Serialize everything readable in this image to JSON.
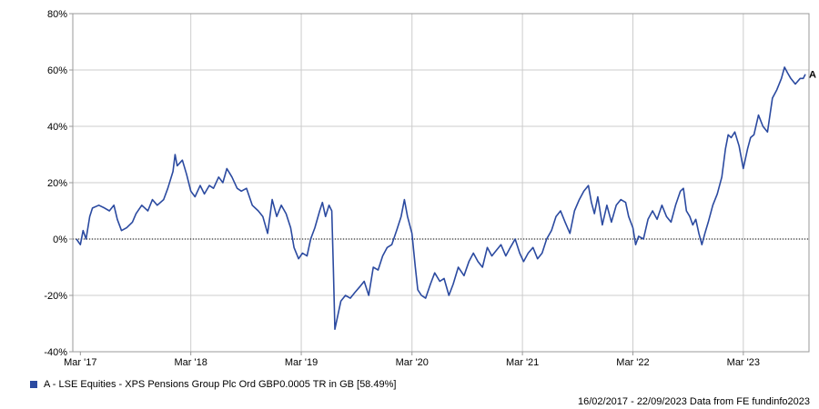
{
  "chart_data": {
    "type": "line",
    "x_tick_labels": [
      "Mar '17",
      "Mar '18",
      "Mar '19",
      "Mar '20",
      "Mar '21",
      "Mar '22",
      "Mar '23"
    ],
    "y_tick_labels": [
      "80%",
      "60%",
      "40%",
      "20%",
      "0%",
      "-20%",
      "-40%"
    ],
    "ylim": [
      -40,
      80
    ],
    "grid": true,
    "reference_line": 0,
    "series": [
      {
        "name": "A - LSE Equities - XPS Pensions Group Plc Ord GBP0.0005 TR in GB [58.49%]",
        "marker_label": "A",
        "color": "#2b4aa0",
        "points": [
          [
            "2017-02-16",
            0
          ],
          [
            "2017-03-01",
            -2
          ],
          [
            "2017-03-10",
            3
          ],
          [
            "2017-03-20",
            0
          ],
          [
            "2017-04-01",
            8
          ],
          [
            "2017-04-10",
            11
          ],
          [
            "2017-05-01",
            12
          ],
          [
            "2017-05-20",
            11
          ],
          [
            "2017-06-05",
            10
          ],
          [
            "2017-06-20",
            12
          ],
          [
            "2017-07-01",
            7
          ],
          [
            "2017-07-15",
            3
          ],
          [
            "2017-08-01",
            4
          ],
          [
            "2017-08-20",
            6
          ],
          [
            "2017-09-01",
            9
          ],
          [
            "2017-09-20",
            12
          ],
          [
            "2017-10-10",
            10
          ],
          [
            "2017-10-25",
            14
          ],
          [
            "2017-11-10",
            12
          ],
          [
            "2017-12-01",
            14
          ],
          [
            "2017-12-15",
            18
          ],
          [
            "2018-01-01",
            24
          ],
          [
            "2018-01-08",
            30
          ],
          [
            "2018-01-15",
            26
          ],
          [
            "2018-02-01",
            28
          ],
          [
            "2018-02-15",
            23
          ],
          [
            "2018-03-01",
            17
          ],
          [
            "2018-03-15",
            15
          ],
          [
            "2018-04-01",
            19
          ],
          [
            "2018-04-15",
            16
          ],
          [
            "2018-05-01",
            19
          ],
          [
            "2018-05-15",
            18
          ],
          [
            "2018-06-01",
            22
          ],
          [
            "2018-06-15",
            20
          ],
          [
            "2018-06-28",
            25
          ],
          [
            "2018-07-15",
            22
          ],
          [
            "2018-08-01",
            18
          ],
          [
            "2018-08-15",
            17
          ],
          [
            "2018-09-01",
            18
          ],
          [
            "2018-09-20",
            12
          ],
          [
            "2018-10-10",
            10
          ],
          [
            "2018-10-25",
            8
          ],
          [
            "2018-11-10",
            2
          ],
          [
            "2018-11-25",
            14
          ],
          [
            "2018-12-10",
            8
          ],
          [
            "2018-12-25",
            12
          ],
          [
            "2019-01-10",
            9
          ],
          [
            "2019-01-25",
            4
          ],
          [
            "2019-02-05",
            -3
          ],
          [
            "2019-02-20",
            -7
          ],
          [
            "2019-03-05",
            -5
          ],
          [
            "2019-03-20",
            -6
          ],
          [
            "2019-04-01",
            0
          ],
          [
            "2019-04-15",
            4
          ],
          [
            "2019-05-01",
            10
          ],
          [
            "2019-05-10",
            13
          ],
          [
            "2019-05-20",
            8
          ],
          [
            "2019-06-01",
            12
          ],
          [
            "2019-06-10",
            10
          ],
          [
            "2019-06-15",
            -10
          ],
          [
            "2019-06-20",
            -32
          ],
          [
            "2019-06-30",
            -27
          ],
          [
            "2019-07-10",
            -22
          ],
          [
            "2019-07-25",
            -20
          ],
          [
            "2019-08-10",
            -21
          ],
          [
            "2019-08-25",
            -19
          ],
          [
            "2019-09-10",
            -17
          ],
          [
            "2019-09-25",
            -15
          ],
          [
            "2019-10-10",
            -20
          ],
          [
            "2019-10-25",
            -10
          ],
          [
            "2019-11-10",
            -11
          ],
          [
            "2019-11-25",
            -6
          ],
          [
            "2019-12-10",
            -3
          ],
          [
            "2019-12-25",
            -2
          ],
          [
            "2020-01-10",
            3
          ],
          [
            "2020-01-25",
            8
          ],
          [
            "2020-02-05",
            14
          ],
          [
            "2020-02-15",
            8
          ],
          [
            "2020-03-01",
            2
          ],
          [
            "2020-03-12",
            -10
          ],
          [
            "2020-03-20",
            -18
          ],
          [
            "2020-04-01",
            -20
          ],
          [
            "2020-04-15",
            -21
          ],
          [
            "2020-05-01",
            -16
          ],
          [
            "2020-05-15",
            -12
          ],
          [
            "2020-06-01",
            -15
          ],
          [
            "2020-06-15",
            -14
          ],
          [
            "2020-07-01",
            -20
          ],
          [
            "2020-07-15",
            -16
          ],
          [
            "2020-08-01",
            -10
          ],
          [
            "2020-08-20",
            -13
          ],
          [
            "2020-09-05",
            -8
          ],
          [
            "2020-09-20",
            -5
          ],
          [
            "2020-10-05",
            -8
          ],
          [
            "2020-10-20",
            -10
          ],
          [
            "2020-11-05",
            -3
          ],
          [
            "2020-11-20",
            -6
          ],
          [
            "2020-12-05",
            -4
          ],
          [
            "2020-12-20",
            -2
          ],
          [
            "2021-01-05",
            -6
          ],
          [
            "2021-01-20",
            -3
          ],
          [
            "2021-02-05",
            0
          ],
          [
            "2021-02-20",
            -5
          ],
          [
            "2021-03-05",
            -8
          ],
          [
            "2021-03-20",
            -5
          ],
          [
            "2021-04-05",
            -3
          ],
          [
            "2021-04-20",
            -7
          ],
          [
            "2021-05-05",
            -5
          ],
          [
            "2021-05-20",
            0
          ],
          [
            "2021-06-05",
            3
          ],
          [
            "2021-06-20",
            8
          ],
          [
            "2021-07-05",
            10
          ],
          [
            "2021-07-20",
            6
          ],
          [
            "2021-08-05",
            2
          ],
          [
            "2021-08-20",
            10
          ],
          [
            "2021-09-05",
            14
          ],
          [
            "2021-09-20",
            17
          ],
          [
            "2021-10-05",
            19
          ],
          [
            "2021-10-15",
            13
          ],
          [
            "2021-10-25",
            9
          ],
          [
            "2021-11-05",
            15
          ],
          [
            "2021-11-20",
            5
          ],
          [
            "2021-12-05",
            12
          ],
          [
            "2021-12-20",
            6
          ],
          [
            "2022-01-05",
            12
          ],
          [
            "2022-01-20",
            14
          ],
          [
            "2022-02-05",
            13
          ],
          [
            "2022-02-15",
            8
          ],
          [
            "2022-03-01",
            4
          ],
          [
            "2022-03-10",
            -2
          ],
          [
            "2022-03-20",
            1
          ],
          [
            "2022-04-05",
            0
          ],
          [
            "2022-04-20",
            7
          ],
          [
            "2022-05-05",
            10
          ],
          [
            "2022-05-20",
            7
          ],
          [
            "2022-06-05",
            12
          ],
          [
            "2022-06-20",
            8
          ],
          [
            "2022-07-05",
            6
          ],
          [
            "2022-07-20",
            12
          ],
          [
            "2022-08-05",
            17
          ],
          [
            "2022-08-15",
            18
          ],
          [
            "2022-08-25",
            10
          ],
          [
            "2022-09-05",
            8
          ],
          [
            "2022-09-15",
            5
          ],
          [
            "2022-09-25",
            7
          ],
          [
            "2022-10-05",
            2
          ],
          [
            "2022-10-15",
            -2
          ],
          [
            "2022-10-25",
            2
          ],
          [
            "2022-11-05",
            6
          ],
          [
            "2022-11-20",
            12
          ],
          [
            "2022-12-05",
            16
          ],
          [
            "2022-12-20",
            22
          ],
          [
            "2023-01-01",
            32
          ],
          [
            "2023-01-10",
            37
          ],
          [
            "2023-01-20",
            36
          ],
          [
            "2023-02-01",
            38
          ],
          [
            "2023-02-15",
            33
          ],
          [
            "2023-03-01",
            25
          ],
          [
            "2023-03-15",
            32
          ],
          [
            "2023-03-25",
            36
          ],
          [
            "2023-04-05",
            37
          ],
          [
            "2023-04-20",
            44
          ],
          [
            "2023-05-05",
            40
          ],
          [
            "2023-05-20",
            38
          ],
          [
            "2023-06-05",
            50
          ],
          [
            "2023-06-20",
            53
          ],
          [
            "2023-07-05",
            57
          ],
          [
            "2023-07-15",
            61
          ],
          [
            "2023-07-25",
            59
          ],
          [
            "2023-08-05",
            57
          ],
          [
            "2023-08-20",
            55
          ],
          [
            "2023-09-05",
            57
          ],
          [
            "2023-09-15",
            57
          ],
          [
            "2023-09-22",
            58.49
          ]
        ]
      }
    ]
  },
  "footer": {
    "source_text": "16/02/2017 - 22/09/2023 Data from FE fundinfo2023"
  }
}
